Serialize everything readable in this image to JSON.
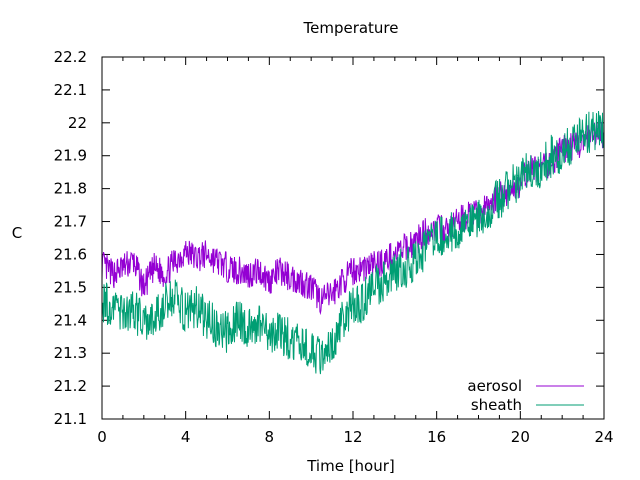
{
  "chart_data": {
    "type": "line",
    "title": "Temperature",
    "xlabel": "Time [hour]",
    "ylabel": "C",
    "xlim": [
      0,
      24
    ],
    "ylim": [
      21.1,
      22.2
    ],
    "xticks": [
      0,
      4,
      8,
      12,
      16,
      20,
      24
    ],
    "xtick_labels": [
      "0",
      "4",
      "8",
      "12",
      "16",
      "20",
      "24"
    ],
    "yticks": [
      21.1,
      21.2,
      21.3,
      21.4,
      21.5,
      21.6,
      21.7,
      21.8,
      21.9,
      22.0,
      22.1,
      22.2
    ],
    "ytick_labels": [
      "21.1",
      "21.2",
      "21.3",
      "21.4",
      "21.5",
      "21.6",
      "21.7",
      "21.8",
      "21.9",
      "22",
      "22.1",
      "22.2"
    ],
    "grid": false,
    "legend_position": "bottom-right",
    "x": [
      0.0,
      0.5,
      1.0,
      1.5,
      2.0,
      2.5,
      3.0,
      3.5,
      4.0,
      4.5,
      5.0,
      5.5,
      6.0,
      6.5,
      7.0,
      7.5,
      8.0,
      8.5,
      9.0,
      9.5,
      10.0,
      10.5,
      11.0,
      11.5,
      12.0,
      12.5,
      13.0,
      13.5,
      14.0,
      14.5,
      15.0,
      15.5,
      16.0,
      16.5,
      17.0,
      17.5,
      18.0,
      18.5,
      19.0,
      19.5,
      20.0,
      20.5,
      21.0,
      21.5,
      22.0,
      22.5,
      23.0,
      23.5,
      24.0
    ],
    "series": [
      {
        "name": "aerosol",
        "color": "#9400d3",
        "values": [
          21.57,
          21.54,
          21.56,
          21.58,
          21.5,
          21.56,
          21.54,
          21.58,
          21.61,
          21.59,
          21.6,
          21.58,
          21.56,
          21.55,
          21.54,
          21.55,
          21.52,
          21.55,
          21.53,
          21.52,
          21.5,
          21.46,
          21.48,
          21.52,
          21.55,
          21.56,
          21.57,
          21.58,
          21.6,
          21.62,
          21.64,
          21.67,
          21.68,
          21.67,
          21.7,
          21.72,
          21.72,
          21.75,
          21.78,
          21.79,
          21.82,
          21.86,
          21.86,
          21.88,
          21.92,
          21.93,
          21.94,
          21.96,
          21.96
        ]
      },
      {
        "name": "sheath",
        "color": "#009e73",
        "values": [
          21.46,
          21.44,
          21.42,
          21.44,
          21.38,
          21.4,
          21.45,
          21.47,
          21.42,
          21.44,
          21.4,
          21.38,
          21.36,
          21.4,
          21.38,
          21.39,
          21.35,
          21.36,
          21.34,
          21.32,
          21.3,
          21.28,
          21.33,
          21.4,
          21.44,
          21.46,
          21.5,
          21.52,
          21.55,
          21.56,
          21.58,
          21.62,
          21.66,
          21.66,
          21.68,
          21.7,
          21.72,
          21.74,
          21.77,
          21.8,
          21.83,
          21.86,
          21.86,
          21.9,
          21.91,
          21.93,
          21.96,
          21.98,
          21.98
        ]
      }
    ]
  }
}
